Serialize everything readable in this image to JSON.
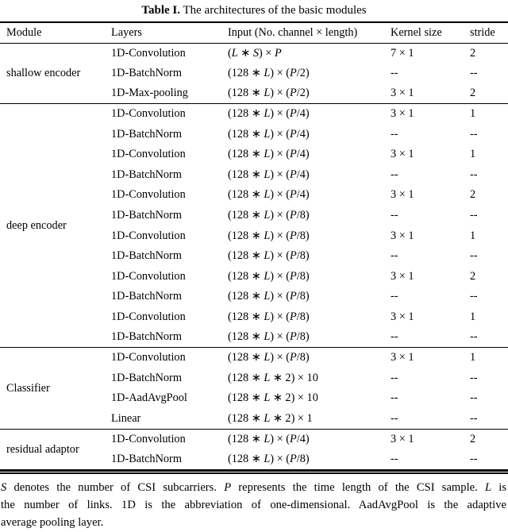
{
  "title": {
    "label": "Table I.",
    "text": "The architectures of the basic modules"
  },
  "table": {
    "columns": [
      "Module",
      "Layers",
      "Input (No. channel × length)",
      "Kernel size",
      "stride"
    ],
    "sections": [
      {
        "module": "shallow encoder",
        "rows": [
          [
            "1D-Convolution",
            "(L ∗ S) × P",
            "7 × 1",
            "2"
          ],
          [
            "1D-BatchNorm",
            "(128 ∗ L) × (P/2)",
            "--",
            "--"
          ],
          [
            "1D-Max-pooling",
            "(128 ∗ L) × (P/2)",
            "3 × 1",
            "2"
          ]
        ]
      },
      {
        "module": "deep encoder",
        "rows": [
          [
            "1D-Convolution",
            "(128 ∗ L) × (P/4)",
            "3 × 1",
            "1"
          ],
          [
            "1D-BatchNorm",
            "(128 ∗ L) × (P/4)",
            "--",
            "--"
          ],
          [
            "1D-Convolution",
            "(128 ∗ L) × (P/4)",
            "3 × 1",
            "1"
          ],
          [
            "1D-BatchNorm",
            "(128 ∗ L) × (P/4)",
            "--",
            "--"
          ],
          [
            "1D-Convolution",
            "(128 ∗ L) × (P/4)",
            "3 × 1",
            "2"
          ],
          [
            "1D-BatchNorm",
            "(128 ∗ L) × (P/8)",
            "--",
            "--"
          ],
          [
            "1D-Convolution",
            "(128 ∗ L) × (P/8)",
            "3 × 1",
            "1"
          ],
          [
            "1D-BatchNorm",
            "(128 ∗ L) × (P/8)",
            "--",
            "--"
          ],
          [
            "1D-Convolution",
            "(128 ∗ L) × (P/8)",
            "3 × 1",
            "2"
          ],
          [
            "1D-BatchNorm",
            "(128 ∗ L) × (P/8)",
            "--",
            "--"
          ],
          [
            "1D-Convolution",
            "(128 ∗ L) × (P/8)",
            "3 × 1",
            "1"
          ],
          [
            "1D-BatchNorm",
            "(128 ∗ L) × (P/8)",
            "--",
            "--"
          ]
        ]
      },
      {
        "module": "Classifier",
        "rows": [
          [
            "1D-Convolution",
            "(128 ∗ L) × (P/8)",
            "3 × 1",
            "1"
          ],
          [
            "1D-BatchNorm",
            "(128 ∗ L ∗ 2) × 10",
            "--",
            "--"
          ],
          [
            "1D-AadAvgPool",
            "(128 ∗ L ∗ 2) × 10",
            "--",
            "--"
          ],
          [
            "Linear",
            "(128 ∗ L ∗ 2) × 1",
            "--",
            "--"
          ]
        ]
      },
      {
        "module": "residual adaptor",
        "rows": [
          [
            "1D-Convolution",
            "(128 ∗ L) × (P/4)",
            "3 × 1",
            "2"
          ],
          [
            "1D-BatchNorm",
            "(128 ∗ L) × (P/8)",
            "--",
            "--"
          ]
        ]
      }
    ]
  },
  "footnote": {
    "lines": [
      "S denotes the number of CSI subcarriers. P represents the time length of the CSI sample. L is",
      "the number of links. 1D is the abbreviation of one-dimensional. AadAvgPool is the adaptive",
      "average pooling layer."
    ]
  },
  "colors": {
    "text": "#000000",
    "background": "#ffffff",
    "rule": "#000000"
  }
}
